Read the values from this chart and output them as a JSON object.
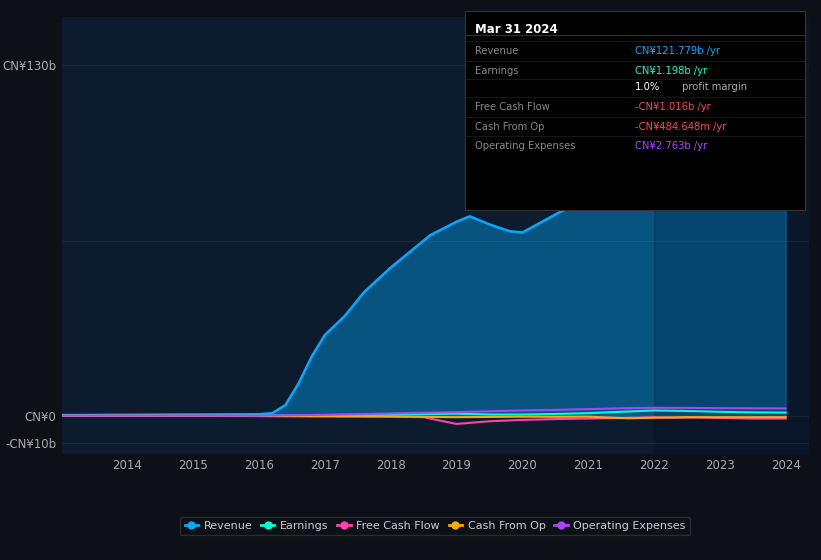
{
  "bg_color": "#0d1117",
  "plot_bg_color": "#0d1b2e",
  "revenue_color": "#00aaff",
  "earnings_color": "#00ffcc",
  "free_cash_flow_color": "#ff44aa",
  "cash_from_op_color": "#ffaa00",
  "operating_expenses_color": "#aa44ff",
  "grid_color": "#1e2d3d",
  "x_ticks": [
    2014,
    2015,
    2016,
    2017,
    2018,
    2019,
    2020,
    2021,
    2022,
    2023,
    2024
  ],
  "y_ticks": [
    -10,
    0,
    130
  ],
  "y_labels": [
    "CN¥130b",
    "CN¥0",
    "-CN¥10b"
  ],
  "rev_x": [
    2013,
    2013.3,
    2013.6,
    2014,
    2014.5,
    2015,
    2015.5,
    2016,
    2016.2,
    2016.4,
    2016.6,
    2016.8,
    2017,
    2017.3,
    2017.6,
    2018,
    2018.3,
    2018.6,
    2019,
    2019.2,
    2019.5,
    2019.8,
    2020,
    2020.3,
    2020.6,
    2021,
    2021.3,
    2021.6,
    2022,
    2022.3,
    2022.6,
    2023,
    2023.3,
    2023.6,
    2024
  ],
  "rev_y": [
    0.3,
    0.3,
    0.35,
    0.4,
    0.45,
    0.5,
    0.55,
    0.6,
    1.0,
    4.0,
    12.0,
    22.0,
    30.0,
    37.0,
    46.0,
    55.0,
    61.0,
    67.0,
    72.0,
    74.0,
    71.0,
    68.5,
    68.0,
    72.0,
    76.0,
    80.0,
    92.0,
    110.0,
    125.0,
    122.0,
    110.0,
    100.0,
    106.0,
    114.0,
    121.779
  ],
  "earn_x": [
    2013,
    2014,
    2015,
    2016,
    2017,
    2018,
    2019,
    2019.5,
    2020,
    2020.5,
    2021,
    2021.5,
    2022,
    2022.5,
    2023,
    2023.5,
    2024
  ],
  "earn_y": [
    0.05,
    0.05,
    0.05,
    0.05,
    0.3,
    0.5,
    0.8,
    0.5,
    0.5,
    0.7,
    1.0,
    1.5,
    2.0,
    1.8,
    1.5,
    1.3,
    1.198
  ],
  "fcf_x": [
    2013,
    2014,
    2015,
    2016,
    2017,
    2018,
    2018.5,
    2019,
    2019.5,
    2020,
    2020.5,
    2021,
    2021.5,
    2022,
    2022.3,
    2022.6,
    2023,
    2023.5,
    2024
  ],
  "fcf_y": [
    0.0,
    0.0,
    0.0,
    -0.1,
    -0.2,
    -0.3,
    -0.5,
    -3.0,
    -2.0,
    -1.5,
    -1.2,
    -1.0,
    -0.8,
    -0.5,
    -0.7,
    -0.6,
    -0.8,
    -1.0,
    -1.016
  ],
  "cop_x": [
    2013,
    2014,
    2015,
    2016,
    2017,
    2018,
    2019,
    2019.5,
    2020,
    2020.5,
    2021,
    2021.3,
    2021.6,
    2022,
    2022.5,
    2023,
    2023.5,
    2024
  ],
  "cop_y": [
    0.0,
    0.0,
    0.0,
    -0.05,
    -0.1,
    -0.2,
    -0.5,
    -0.4,
    -0.3,
    -0.35,
    -0.3,
    -0.6,
    -0.9,
    -0.7,
    -0.5,
    -0.5,
    -0.5,
    -0.4848
  ],
  "opex_x": [
    2013,
    2014,
    2015,
    2016,
    2017,
    2018,
    2019,
    2019.5,
    2020,
    2020.5,
    2021,
    2021.5,
    2022,
    2022.5,
    2023,
    2023.5,
    2024
  ],
  "opex_y": [
    0.05,
    0.05,
    0.05,
    0.05,
    0.4,
    0.9,
    1.4,
    1.7,
    2.0,
    2.2,
    2.5,
    2.8,
    3.0,
    2.95,
    2.85,
    2.8,
    2.763
  ],
  "tooltip": {
    "title": "Mar 31 2024",
    "rows": [
      {
        "label": "Revenue",
        "value": "CN¥121.779b /yr",
        "vcolor": "#00aaff"
      },
      {
        "label": "Earnings",
        "value": "CN¥1.198b /yr",
        "vcolor": "#00ffcc"
      },
      {
        "label": "",
        "value": "1.0%",
        "vcolor": "#ffffff",
        "suffix": " profit margin",
        "scolor": "#aaaaaa"
      },
      {
        "label": "Free Cash Flow",
        "value": "-CN¥1.016b /yr",
        "vcolor": "#ff4444"
      },
      {
        "label": "Cash From Op",
        "value": "-CN¥484.648m /yr",
        "vcolor": "#ff4444"
      },
      {
        "label": "Operating Expenses",
        "value": "CN¥2.763b /yr",
        "vcolor": "#aa44ff"
      }
    ]
  },
  "legend_items": [
    {
      "label": "Revenue",
      "color": "#00aaff"
    },
    {
      "label": "Earnings",
      "color": "#00ffcc"
    },
    {
      "label": "Free Cash Flow",
      "color": "#ff44aa"
    },
    {
      "label": "Cash From Op",
      "color": "#ffaa00"
    },
    {
      "label": "Operating Expenses",
      "color": "#aa44ff"
    }
  ]
}
